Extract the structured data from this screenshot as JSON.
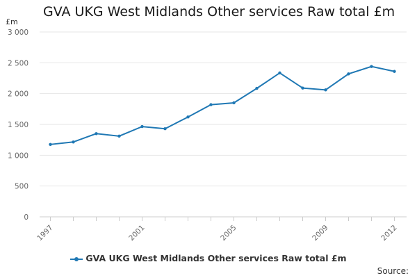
{
  "chart_data": {
    "type": "line",
    "title": "GVA UKG West Midlands Other services Raw total £m",
    "ylabel": "£m",
    "xlabel": "",
    "ylim": [
      0,
      3000
    ],
    "yticks": [
      "0",
      "500",
      "1 000",
      "1 500",
      "2 000",
      "2 500",
      "3 000"
    ],
    "xtick_labels": [
      "1997",
      "2001",
      "2005",
      "2009",
      "2012"
    ],
    "x": [
      1997,
      1998,
      1999,
      2000,
      2001,
      2002,
      2003,
      2004,
      2005,
      2006,
      2007,
      2008,
      2009,
      2010,
      2011,
      2012
    ],
    "series": [
      {
        "name": "GVA UKG West Midlands Other services Raw total £m",
        "values": [
          1175,
          1215,
          1350,
          1310,
          1465,
          1430,
          1620,
          1820,
          1850,
          2085,
          2335,
          2090,
          2060,
          2320,
          2440,
          2360
        ]
      }
    ],
    "color": "#1f78b4",
    "grid": true,
    "legend": "bottom-center"
  },
  "footer": {
    "source": "Source:"
  }
}
